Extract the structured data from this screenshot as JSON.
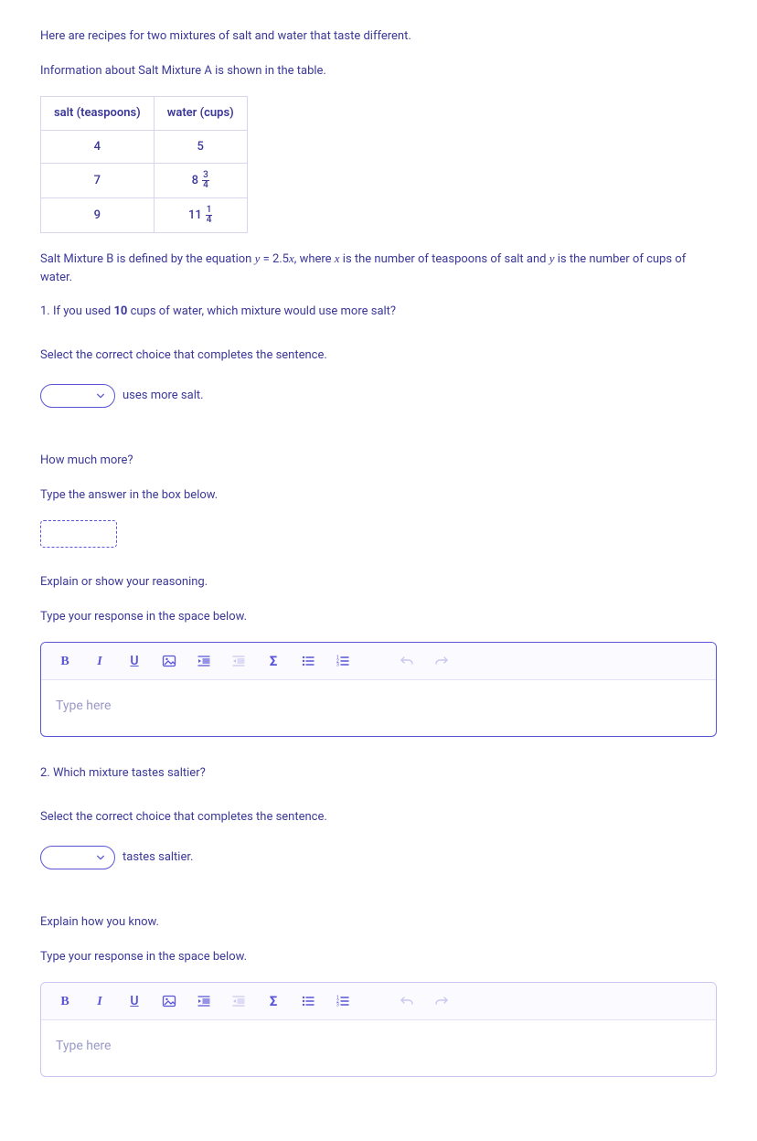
{
  "colors": {
    "primary": "#5a55d6",
    "text": "#3b3899",
    "muted": "#c9c7ef",
    "placeholder": "#9b99c8",
    "border_light": "#d7d6ee",
    "background_page": "#ffffff",
    "background_outer": "#f2f4f8",
    "toolbar_bg": "#fbfbff"
  },
  "intro": {
    "line1": "Here are recipes for two mixtures of salt and water that taste different.",
    "line2": "Information about Salt Mixture A is shown in the table."
  },
  "table": {
    "columns": [
      "salt (teaspoons)",
      "water (cups)"
    ],
    "rows": [
      [
        "4",
        "5"
      ],
      [
        "7",
        {
          "whole": "8",
          "num": "3",
          "den": "4"
        }
      ],
      [
        "9",
        {
          "whole": "11",
          "num": "1",
          "den": "4"
        }
      ]
    ]
  },
  "equation_text": {
    "prefix": "Salt Mixture B is defined by the equation ",
    "y": "y",
    "eq": " = ",
    "coef": "2.5",
    "x": "x",
    "mid": ", where ",
    "xdesc": " is the number of teaspoons of salt and ",
    "ydesc": " is the number of cups of water."
  },
  "q1": {
    "prompt_prefix": "1. If you used ",
    "ten": "10",
    "prompt_suffix": " cups of water, which mixture would use more salt?",
    "select_instruction": "Select the correct choice that completes the sentence.",
    "select_suffix": "uses more salt.",
    "how_much_more": "How much more?",
    "type_box": "Type the answer in the box below.",
    "explain_title": "Explain or show your reasoning.",
    "explain_sub": "Type your response in the space below."
  },
  "q2": {
    "prompt": "2. Which mixture tastes saltier?",
    "select_instruction": "Select the correct choice that completes the sentence.",
    "select_suffix": "tastes saltier.",
    "explain_title": "Explain how you know.",
    "explain_sub": "Type your response in the space below."
  },
  "editor": {
    "placeholder": "Type here",
    "buttons": {
      "bold": "B",
      "italic": "I",
      "underline": "U",
      "sigma": "Σ"
    }
  }
}
